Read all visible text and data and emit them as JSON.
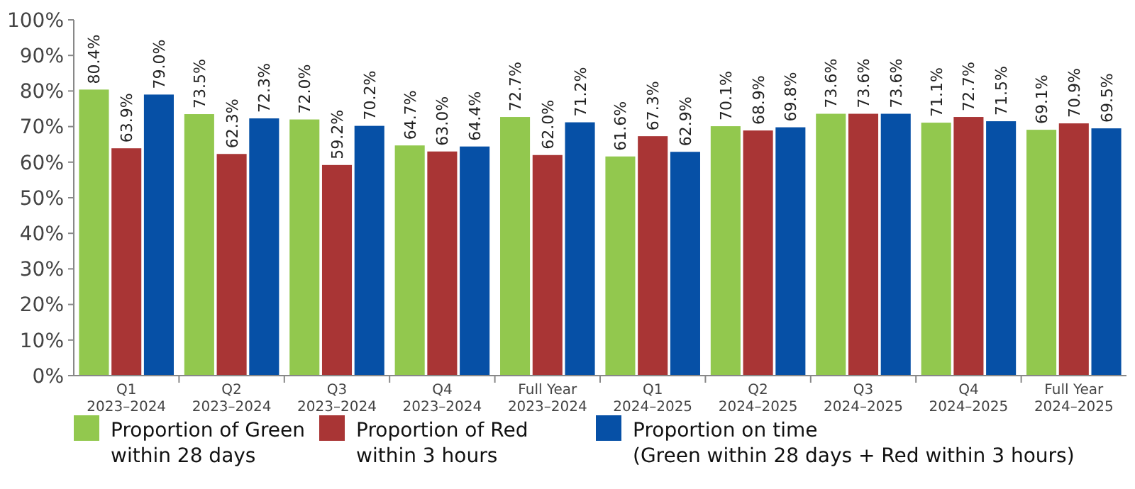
{
  "chart_data": {
    "type": "bar",
    "categories": [
      "Q1\n2023–2024",
      "Q2\n2023–2024",
      "Q3\n2023–2024",
      "Q4\n2023–2024",
      "Full Year\n2023–2024",
      "Q1\n2024–2025",
      "Q2\n2024–2025",
      "Q3\n2024–2025",
      "Q4\n2024–2025",
      "Full Year\n2024–2025"
    ],
    "series": [
      {
        "name": "Proportion of Green\nwithin 28 days",
        "color": "#92c84e",
        "values": [
          80.4,
          73.5,
          72.0,
          64.7,
          72.7,
          61.6,
          70.1,
          73.6,
          71.1,
          69.1
        ],
        "value_labels": [
          "80.4%",
          "73.5%",
          "72.0%",
          "64.7%",
          "72.7%",
          "61.6%",
          "70.1%",
          "73.6%",
          "71.1%",
          "69.1%"
        ]
      },
      {
        "name": "Proportion of Red\nwithin 3 hours",
        "color": "#a93535",
        "values": [
          63.9,
          62.3,
          59.2,
          63.0,
          62.0,
          67.3,
          68.9,
          73.6,
          72.7,
          70.9
        ],
        "value_labels": [
          "63.9%",
          "62.3%",
          "59.2%",
          "63.0%",
          "62.0%",
          "67.3%",
          "68.9%",
          "73.6%",
          "72.7%",
          "70.9%"
        ]
      },
      {
        "name": "Proportion on time\n(Green within 28 days + Red within 3 hours)",
        "color": "#0650a6",
        "values": [
          79.0,
          72.3,
          70.2,
          64.4,
          71.2,
          62.9,
          69.8,
          73.6,
          71.5,
          69.5
        ],
        "value_labels": [
          "79.0%",
          "72.3%",
          "70.2%",
          "64.4%",
          "71.2%",
          "62.9%",
          "69.8%",
          "73.6%",
          "71.5%",
          "69.5%"
        ]
      }
    ],
    "ylim": [
      0,
      100
    ],
    "yticks": [
      {
        "value": 0,
        "label": "0%"
      },
      {
        "value": 10,
        "label": "10%"
      },
      {
        "value": 20,
        "label": "20%"
      },
      {
        "value": 30,
        "label": "30%"
      },
      {
        "value": 40,
        "label": "40%"
      },
      {
        "value": 50,
        "label": "50%"
      },
      {
        "value": 60,
        "label": "60%"
      },
      {
        "value": 70,
        "label": "70%"
      },
      {
        "value": 80,
        "label": "80%"
      },
      {
        "value": 90,
        "label": "90%"
      },
      {
        "value": 100,
        "label": "100%"
      }
    ],
    "grid": false,
    "legend": "bottom"
  }
}
